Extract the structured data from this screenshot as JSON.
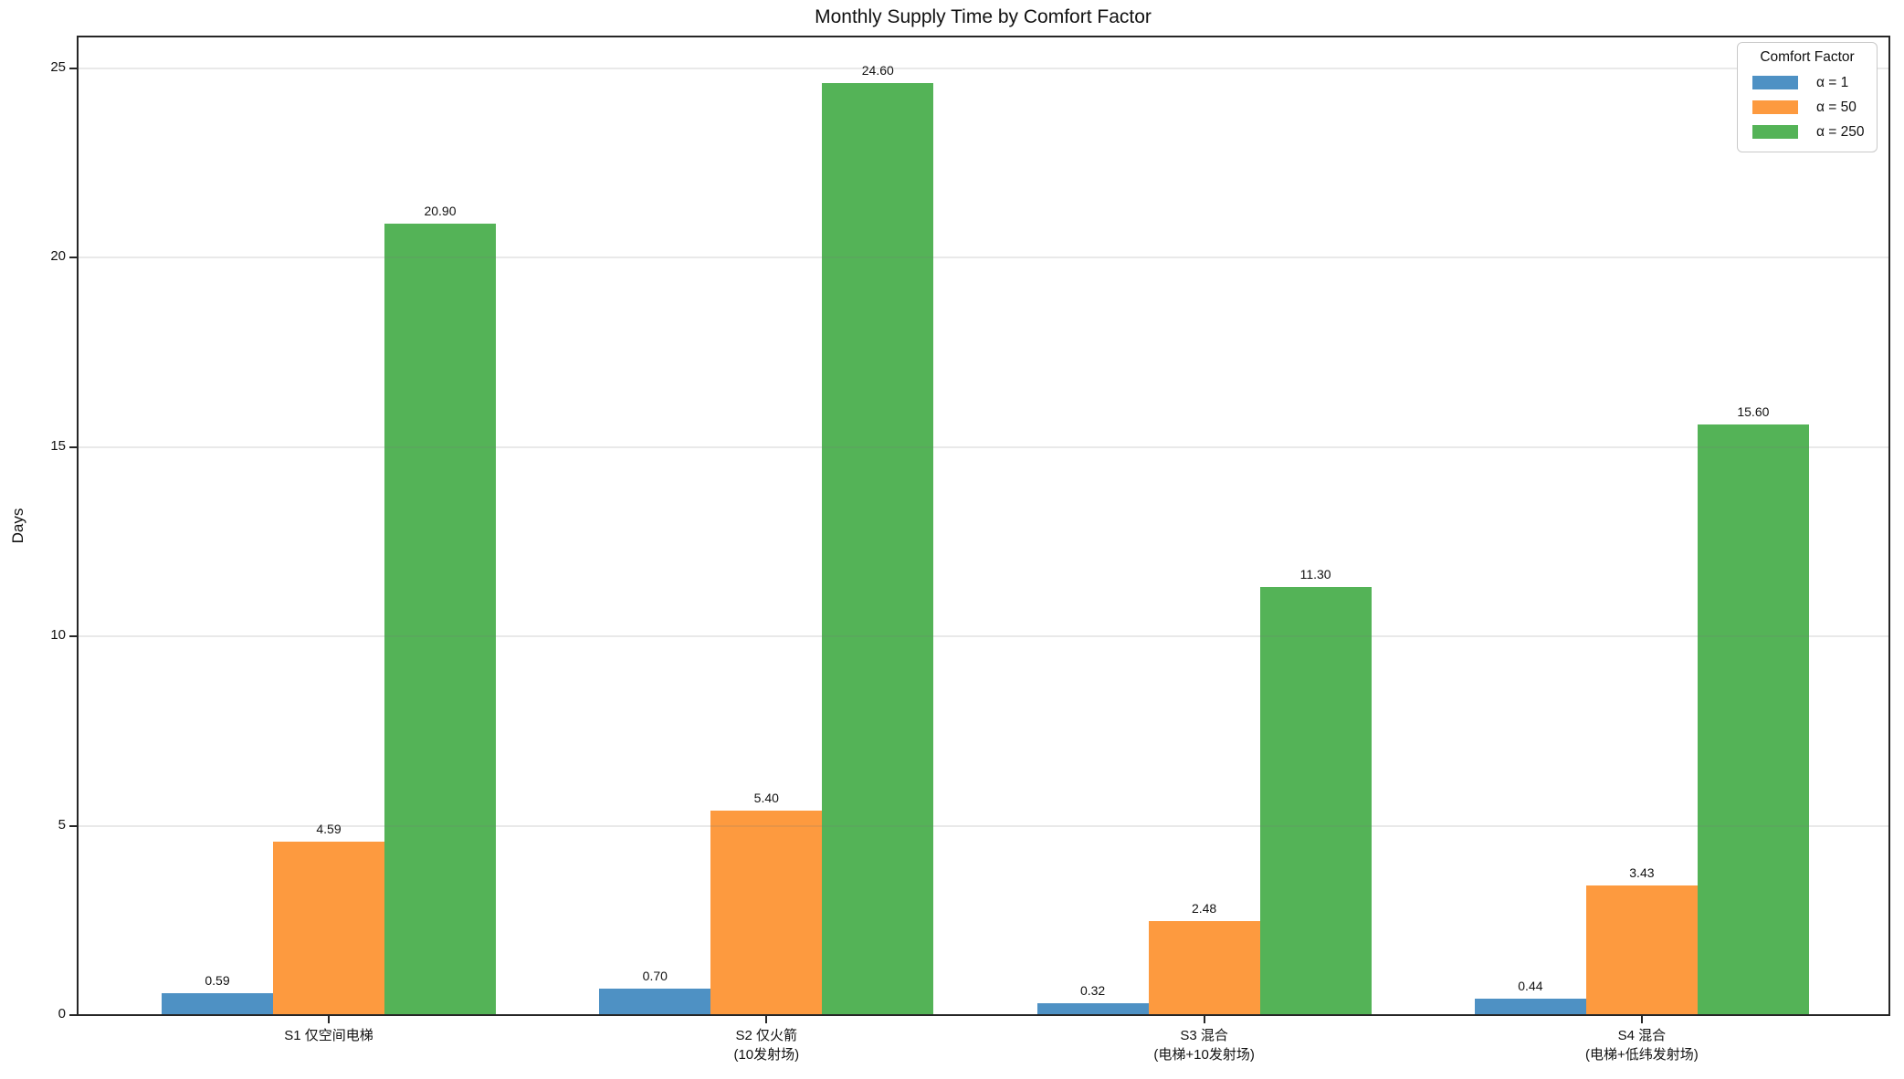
{
  "chart_data": {
    "type": "bar",
    "title": "Monthly Supply Time by Comfort Factor",
    "xlabel": "",
    "ylabel": "Days",
    "ylim": [
      0,
      25.84
    ],
    "yticks": [
      0,
      5,
      10,
      15,
      20,
      25
    ],
    "grid": true,
    "legend": {
      "title": "Comfort Factor",
      "position": "upper right"
    },
    "categories": [
      [
        "S1 仅空间电梯"
      ],
      [
        "S2 仅火箭",
        "(10发射场)"
      ],
      [
        "S3 混合",
        "(电梯+10发射场)"
      ],
      [
        "S4 混合",
        "(电梯+低纬发射场)"
      ]
    ],
    "series": [
      {
        "name": "α = 1",
        "color": "#4E91C4",
        "values": [
          0.59,
          0.7,
          0.32,
          0.44
        ],
        "labels": [
          "0.59",
          "0.70",
          "0.32",
          "0.44"
        ]
      },
      {
        "name": "α = 50",
        "color": "#FD9A3F",
        "values": [
          4.59,
          5.4,
          2.48,
          3.43
        ],
        "labels": [
          "4.59",
          "5.40",
          "2.48",
          "3.43"
        ]
      },
      {
        "name": "α = 250",
        "color": "#54B357",
        "values": [
          20.9,
          24.6,
          11.3,
          15.6
        ],
        "labels": [
          "20.90",
          "24.60",
          "11.30",
          "15.60"
        ]
      }
    ]
  }
}
